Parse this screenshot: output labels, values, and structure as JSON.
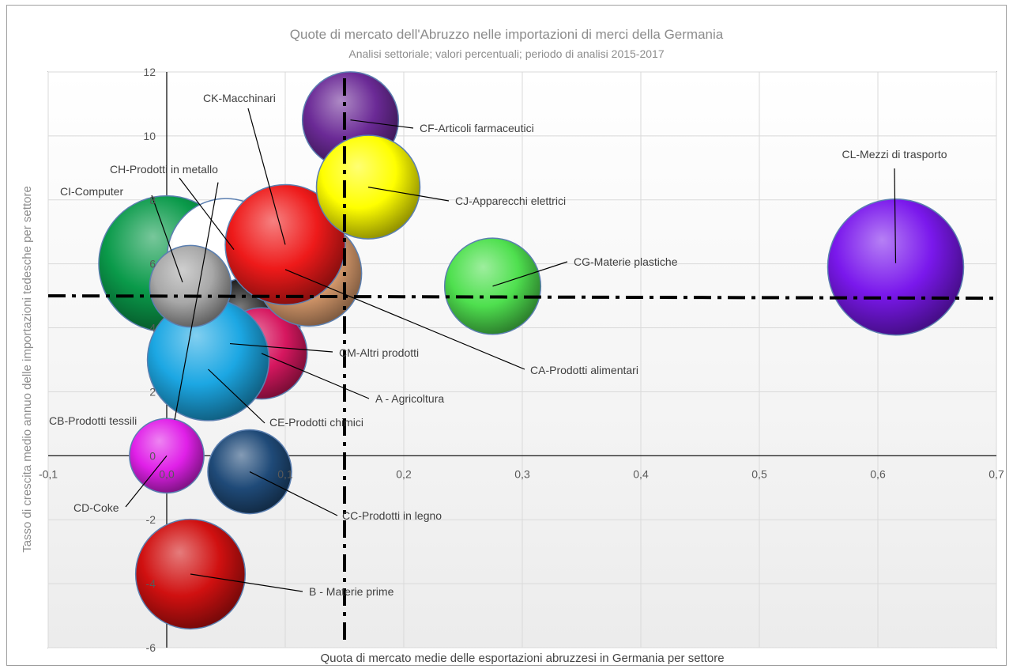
{
  "chart_data": {
    "type": "bubble",
    "title": "Quote di mercato dell'Abruzzo  nelle importazioni di merci della Germania",
    "subtitle": "Analisi settoriale; valori percentuali; periodo di analisi 2015-2017",
    "xlabel": "Quota di mercato medie delle esportazioni abruzzesi in Germania per settore",
    "ylabel": "Tasso di crescita medio annuo delle importazioni tedesche per settore",
    "xlim": [
      -0.1,
      0.7
    ],
    "ylim": [
      -6,
      12
    ],
    "x_ticks": [
      "-0,1",
      "0,0",
      "0,1",
      "0,2",
      "0,3",
      "0,4",
      "0,5",
      "0,6",
      "0,7"
    ],
    "y_ticks": [
      "-6",
      "-4",
      "-2",
      "0",
      "2",
      "4",
      "6",
      "8",
      "10",
      "12"
    ],
    "grid": true,
    "reference_lines": {
      "x": 0.15,
      "y": 5.0
    },
    "series": [
      {
        "label": "CB-Prodotti tessili",
        "x": 0.0,
        "y": 6.0,
        "size": 1.0,
        "color": "#0a9a4a"
      },
      {
        "label": "CH-Prodotti in metallo",
        "x": 0.05,
        "y": 6.2,
        "size": 0.75,
        "color": "#ffffff"
      },
      {
        "label": "CM-Altri prodotti",
        "x": 0.07,
        "y": 4.0,
        "size": 0.55,
        "color": "#111111"
      },
      {
        "label": "A - Agricoltura",
        "x": 0.08,
        "y": 3.2,
        "size": 0.45,
        "color": "#d6175f"
      },
      {
        "label": "CA-Prodotti alimentari",
        "x": 0.12,
        "y": 5.7,
        "size": 0.6,
        "color": "#e0a070"
      },
      {
        "label": "CK-Macchinari",
        "x": 0.1,
        "y": 6.6,
        "size": 0.78,
        "color": "#ee1a1a"
      },
      {
        "label": "CE-Prodotti chimici",
        "x": 0.035,
        "y": 3.0,
        "size": 0.8,
        "color": "#1ca7e3"
      },
      {
        "label": "CI-Computer",
        "x": 0.02,
        "y": 5.3,
        "size": 0.36,
        "color": "#a8a8a8"
      },
      {
        "label": "CF-Articoli farmaceutici",
        "x": 0.155,
        "y": 10.5,
        "size": 0.5,
        "color": "#6b2a96"
      },
      {
        "label": "CJ-Apparecchi elettrici",
        "x": 0.17,
        "y": 8.4,
        "size": 0.58,
        "color": "#ffff00"
      },
      {
        "label": "CG-Materie plastiche",
        "x": 0.275,
        "y": 5.3,
        "size": 0.5,
        "color": "#4fe04f"
      },
      {
        "label": "CL-Mezzi di trasporto",
        "x": 0.615,
        "y": 5.9,
        "size": 1.0,
        "color": "#7a18ec"
      },
      {
        "label": "CD-Coke",
        "x": 0.0,
        "y": 0.0,
        "size": 0.3,
        "color": "#e020e8"
      },
      {
        "label": "CC-Prodotti in legno",
        "x": 0.07,
        "y": -0.5,
        "size": 0.38,
        "color": "#1f4a78"
      },
      {
        "label": "B - Materie prime",
        "x": 0.02,
        "y": -3.7,
        "size": 0.65,
        "color": "#d01010"
      }
    ]
  }
}
